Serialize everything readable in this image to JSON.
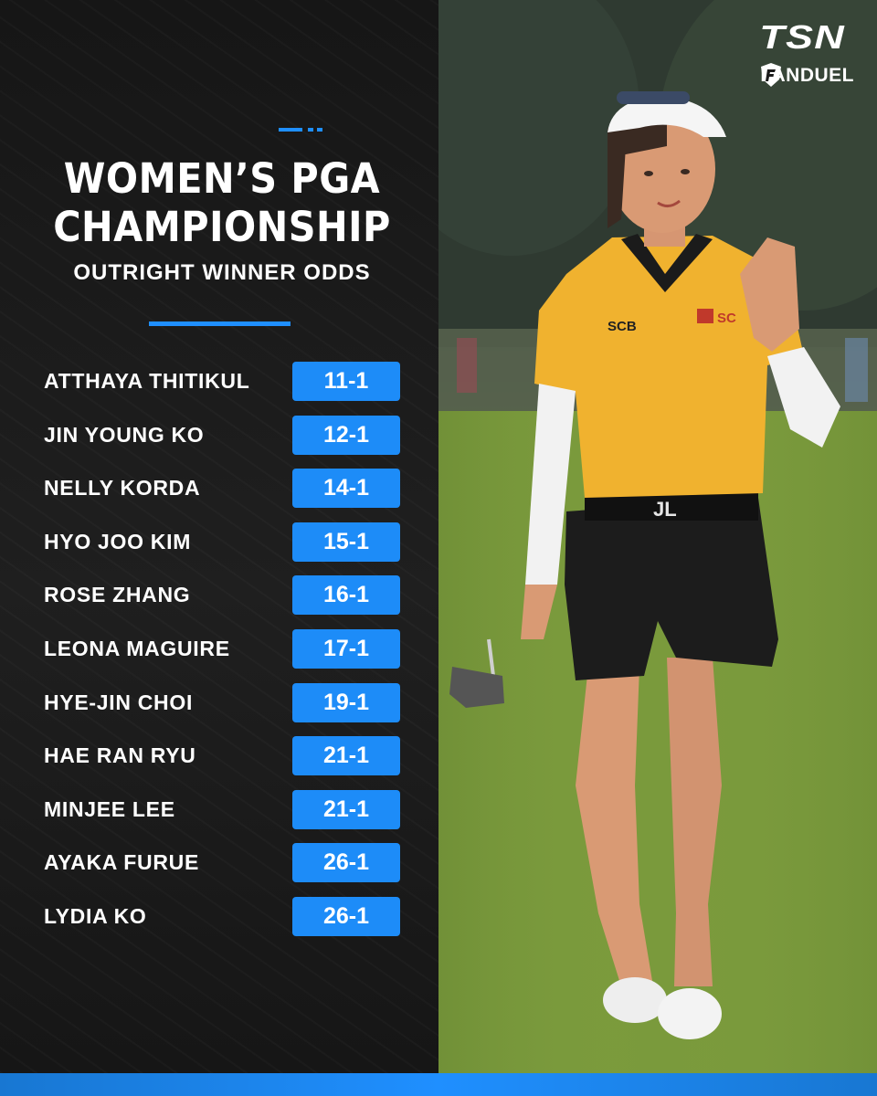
{
  "brand": {
    "tsn": "TSN",
    "fanduel": "FANDUEL"
  },
  "header": {
    "title_line1": "WOMEN’S PGA",
    "title_line2": "CHAMPIONSHIP",
    "subtitle": "OUTRIGHT WINNER ODDS"
  },
  "odds": [
    {
      "name": "ATTHAYA THITIKUL",
      "odds": "11-1"
    },
    {
      "name": "JIN YOUNG KO",
      "odds": "12-1"
    },
    {
      "name": "NELLY KORDA",
      "odds": "14-1"
    },
    {
      "name": "HYO JOO KIM",
      "odds": "15-1"
    },
    {
      "name": "ROSE ZHANG",
      "odds": "16-1"
    },
    {
      "name": "LEONA MAGUIRE",
      "odds": "17-1"
    },
    {
      "name": "HYE-JIN CHOI",
      "odds": "19-1"
    },
    {
      "name": "HAE RAN RYU",
      "odds": "21-1"
    },
    {
      "name": "MINJEE LEE",
      "odds": "21-1"
    },
    {
      "name": "AYAKA FURUE",
      "odds": "26-1"
    },
    {
      "name": "LYDIA KO",
      "odds": "26-1"
    }
  ],
  "colors": {
    "accent": "#1f8fff",
    "panel": "#1b1b1b",
    "shirt": "#f0b22f"
  }
}
